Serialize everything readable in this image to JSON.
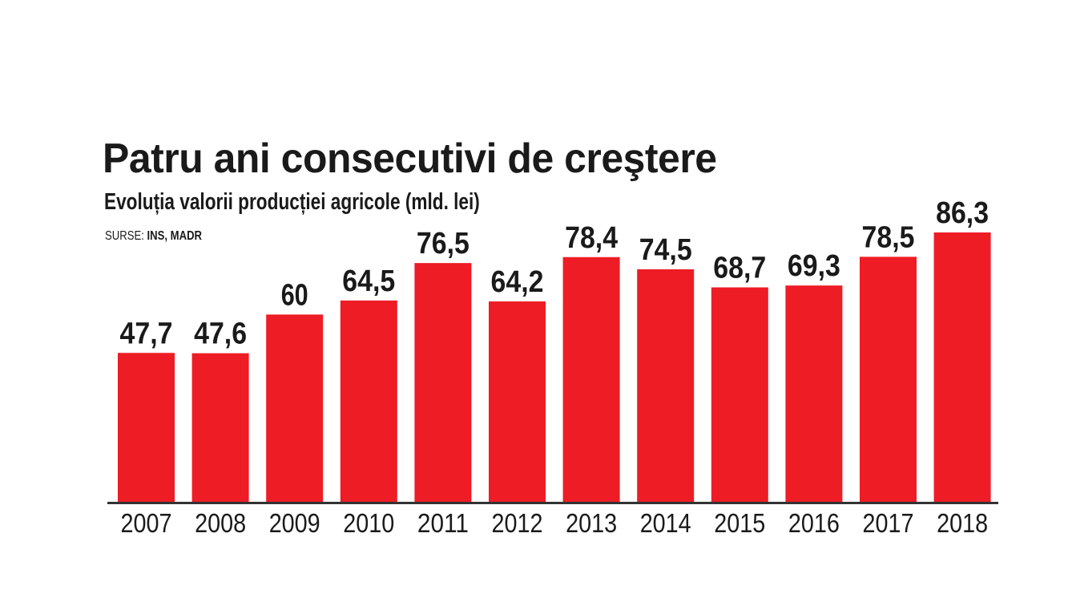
{
  "chart_data": {
    "type": "bar",
    "title": "Patru ani consecutivi de creştere",
    "subtitle": "Evoluția valorii producției agricole (mld. lei)",
    "source_label": "SURSE:",
    "source_value": "INS, MADR",
    "xlabel": "",
    "ylabel": "",
    "ylim": [
      0,
      86.3
    ],
    "grid": false,
    "categories": [
      "2007",
      "2008",
      "2009",
      "2010",
      "2011",
      "2012",
      "2013",
      "2014",
      "2015",
      "2016",
      "2017",
      "2018"
    ],
    "values": [
      47.7,
      47.6,
      60,
      64.5,
      76.5,
      64.2,
      78.4,
      74.5,
      68.7,
      69.3,
      78.5,
      86.3
    ],
    "value_labels": [
      "47,7",
      "47,6",
      "60",
      "64,5",
      "76,5",
      "64,2",
      "78,4",
      "74,5",
      "68,7",
      "69,3",
      "78,5",
      "86,3"
    ],
    "bar_color": "#ee1c25",
    "axis_color": "#333333"
  }
}
